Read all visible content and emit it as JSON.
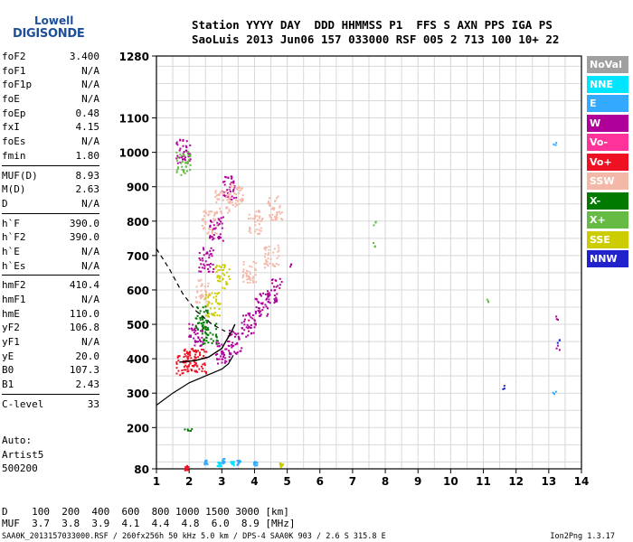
{
  "logo": {
    "line1": "Lowell",
    "line2": "DIGISONDE"
  },
  "header": {
    "line1": "Station YYYY DAY  DDD HHMMSS P1  FFS S AXN PPS IGA PS",
    "line2": "SaoLuis 2013 Jun06 157 033000 RSF 005 2 713 100 10+ 22"
  },
  "params": [
    {
      "k": "foF2",
      "v": "3.400"
    },
    {
      "k": "foF1",
      "v": "N/A"
    },
    {
      "k": "foF1p",
      "v": "N/A"
    },
    {
      "k": "foE",
      "v": "N/A"
    },
    {
      "k": "foEp",
      "v": "0.48"
    },
    {
      "k": "fxI",
      "v": "4.15"
    },
    {
      "k": "foEs",
      "v": "N/A"
    },
    {
      "k": "fmin",
      "v": "1.80"
    },
    {
      "k": "MUF(D)",
      "v": "8.93",
      "sep": true
    },
    {
      "k": "M(D)",
      "v": "2.63"
    },
    {
      "k": "D",
      "v": "N/A"
    },
    {
      "k": "h`F",
      "v": "390.0",
      "sep": true
    },
    {
      "k": "h`F2",
      "v": "390.0"
    },
    {
      "k": "h`E",
      "v": "N/A"
    },
    {
      "k": "h`Es",
      "v": "N/A"
    },
    {
      "k": "hmF2",
      "v": "410.4",
      "sep": true
    },
    {
      "k": "hmF1",
      "v": "N/A"
    },
    {
      "k": "hmE",
      "v": "110.0"
    },
    {
      "k": "yF2",
      "v": "106.8"
    },
    {
      "k": "yF1",
      "v": "N/A"
    },
    {
      "k": "yE",
      "v": "20.0"
    },
    {
      "k": "B0",
      "v": "107.3"
    },
    {
      "k": "B1",
      "v": "2.43"
    },
    {
      "k": "C-level",
      "v": "33",
      "sep": true
    }
  ],
  "notes": [
    "Auto:",
    "Artist5",
    "500200"
  ],
  "footer": {
    "line1": "D    100  200  400  600  800 1000 1500 3000 [km]",
    "line2": "MUF  3.7  3.8  3.9  4.1  4.4  4.8  6.0  8.9 [MHz]",
    "line3": "SAA0K_2013157033000.RSF / 260fx256h 50 kHz 5.0 km / DPS-4 SAA0K 903 / 2.6 S 315.8 E",
    "version": "Ion2Png 1.3.17"
  },
  "legend": [
    {
      "label": "NoVal",
      "color": "#a0a0a0"
    },
    {
      "label": "NNE",
      "color": "#00e5ff"
    },
    {
      "label": "E",
      "color": "#33aaff"
    },
    {
      "label": "W",
      "color": "#b0009a"
    },
    {
      "label": "Vo-",
      "color": "#ff3399"
    },
    {
      "label": "Vo+",
      "color": "#ee1122"
    },
    {
      "label": "SSW",
      "color": "#f4b8a8"
    },
    {
      "label": "X-",
      "color": "#007a00"
    },
    {
      "label": "X+",
      "color": "#66bb44"
    },
    {
      "label": "SSE",
      "color": "#cccc00"
    },
    {
      "label": "NNW",
      "color": "#2222cc"
    }
  ],
  "chart_data": {
    "type": "scatter",
    "xlim": [
      1,
      14
    ],
    "ylim": [
      80,
      1280
    ],
    "x_ticks": [
      1,
      2,
      3,
      4,
      5,
      6,
      7,
      8,
      9,
      10,
      11,
      12,
      13,
      14
    ],
    "y_ticks": [
      80,
      200,
      300,
      400,
      500,
      600,
      700,
      800,
      900,
      1000,
      1100,
      1280
    ],
    "grid": true,
    "legend_placement": "right",
    "series": [
      {
        "name": "W",
        "color": "#b0009a",
        "points": [
          [
            3.0,
            420
          ],
          [
            3.4,
            450
          ],
          [
            3.8,
            500
          ],
          [
            4.2,
            560
          ],
          [
            4.6,
            600
          ],
          [
            2.2,
            470
          ],
          [
            2.5,
            690
          ],
          [
            2.8,
            780
          ],
          [
            3.2,
            900
          ],
          [
            1.8,
            1005
          ],
          [
            13.25,
            520
          ],
          [
            13.25,
            435
          ],
          [
            5.1,
            675
          ]
        ]
      },
      {
        "name": "SSW",
        "color": "#f4b8a8",
        "points": [
          [
            2.6,
            800
          ],
          [
            3.0,
            860
          ],
          [
            3.4,
            880
          ],
          [
            4.0,
            800
          ],
          [
            4.5,
            700
          ],
          [
            2.4,
            600
          ],
          [
            3.8,
            650
          ],
          [
            4.6,
            840
          ]
        ]
      },
      {
        "name": "Vo+",
        "color": "#ee1122",
        "points": [
          [
            1.8,
            390
          ],
          [
            2.0,
            400
          ],
          [
            2.3,
            395
          ],
          [
            1.9,
            85
          ]
        ]
      },
      {
        "name": "X-",
        "color": "#007a00",
        "points": [
          [
            2.4,
            520
          ],
          [
            2.6,
            480
          ],
          [
            1.9,
            200
          ],
          [
            2.0,
            195
          ]
        ]
      },
      {
        "name": "X+",
        "color": "#66bb44",
        "points": [
          [
            7.65,
            795
          ],
          [
            7.65,
            735
          ],
          [
            11.1,
            570
          ],
          [
            1.8,
            970
          ]
        ]
      },
      {
        "name": "SSE",
        "color": "#cccc00",
        "points": [
          [
            2.7,
            560
          ],
          [
            3.0,
            640
          ],
          [
            4.8,
            93
          ]
        ]
      },
      {
        "name": "E",
        "color": "#33aaff",
        "points": [
          [
            2.5,
            100
          ],
          [
            3.0,
            105
          ],
          [
            3.5,
            100
          ],
          [
            4.0,
            98
          ],
          [
            13.15,
            1030
          ],
          [
            13.15,
            300
          ]
        ]
      },
      {
        "name": "NNE",
        "color": "#00e5ff",
        "points": [
          [
            2.9,
            95
          ],
          [
            3.3,
            97
          ]
        ]
      },
      {
        "name": "NNW",
        "color": "#2222cc",
        "points": [
          [
            11.6,
            320
          ],
          [
            13.3,
            455
          ]
        ]
      }
    ],
    "profile": [
      [
        1,
        265
      ],
      [
        1.5,
        300
      ],
      [
        2.0,
        330
      ],
      [
        2.5,
        350
      ],
      [
        3.0,
        370
      ],
      [
        3.2,
        385
      ],
      [
        3.35,
        410
      ]
    ],
    "trace": [
      [
        1.7,
        390
      ],
      [
        2.2,
        395
      ],
      [
        2.6,
        405
      ],
      [
        3.0,
        430
      ],
      [
        3.3,
        480
      ],
      [
        3.4,
        500
      ]
    ],
    "dashed": [
      [
        1,
        720
      ],
      [
        1.4,
        660
      ],
      [
        1.8,
        590
      ],
      [
        2.2,
        540
      ],
      [
        2.7,
        500
      ],
      [
        3.1,
        480
      ]
    ]
  }
}
